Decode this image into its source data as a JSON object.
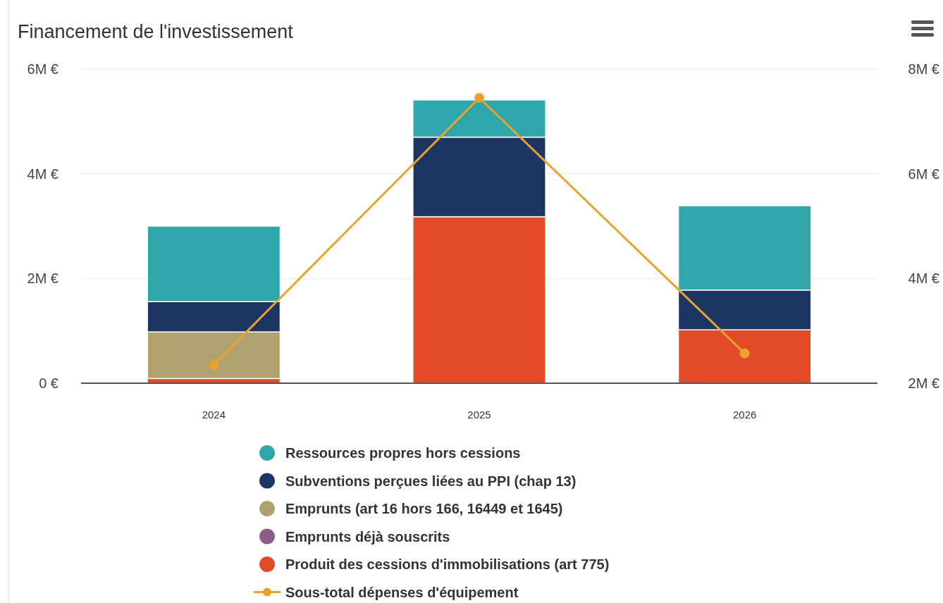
{
  "chart_data": {
    "type": "bar",
    "title": "Financement de l'investissement",
    "categories": [
      "2024",
      "2025",
      "2026"
    ],
    "stacked": true,
    "series": [
      {
        "name": "Produit des cessions d'immobilisations (art 775)",
        "color": "#e34a26",
        "values": [
          0.09,
          3.18,
          1.02
        ]
      },
      {
        "name": "Emprunts déjà souscrits",
        "color": "#8e5d85",
        "values": [
          0,
          0,
          0
        ]
      },
      {
        "name": "Emprunts (art 16 hors 166, 16449 et 1645)",
        "color": "#b0a06c",
        "values": [
          0.89,
          0,
          0
        ]
      },
      {
        "name": "Subventions perçues liées au PPI (chap 13)",
        "color": "#1d3563",
        "values": [
          0.58,
          1.52,
          0.76
        ]
      },
      {
        "name": "Ressources propres hors cessions",
        "color": "#2fa6aa",
        "values": [
          1.44,
          0.71,
          1.61
        ]
      },
      {
        "name": "Sous-total dépenses d'équipement",
        "type": "line",
        "axis": "y2",
        "color": "#e9a22f",
        "values": [
          2.35,
          7.45,
          2.57
        ]
      }
    ],
    "ylim": [
      0,
      6
    ],
    "yticks": [
      {
        "value": 0,
        "label": "0 €"
      },
      {
        "value": 2,
        "label": "2M €"
      },
      {
        "value": 4,
        "label": "4M €"
      },
      {
        "value": 6,
        "label": "6M €"
      }
    ],
    "y2lim": [
      2,
      8
    ],
    "y2ticks": [
      {
        "value": 2,
        "label": "2M €"
      },
      {
        "value": 4,
        "label": "4M €"
      },
      {
        "value": 6,
        "label": "6M €"
      },
      {
        "value": 8,
        "label": "8M €"
      }
    ],
    "grid": "y",
    "legend": "bottom",
    "marker": "circle"
  }
}
